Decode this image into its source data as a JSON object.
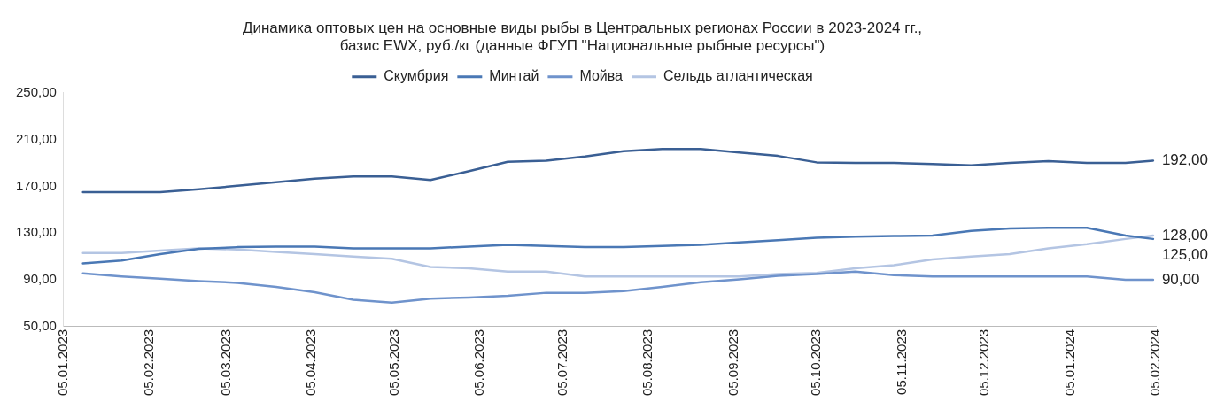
{
  "chart_data": {
    "type": "line",
    "title": "Динамика оптовых цен на основные виды рыбы в Центральных регионах России в 2023-2024 гг.,\nбазис EWX, руб./кг (данные ФГУП \"Национальные рыбные ресурсы\")",
    "x": [
      "2023-01-12",
      "2023-01-26",
      "2023-02-09",
      "2023-02-23",
      "2023-03-09",
      "2023-03-23",
      "2023-04-06",
      "2023-04-20",
      "2023-05-04",
      "2023-05-18",
      "2023-06-01",
      "2023-06-15",
      "2023-06-29",
      "2023-07-13",
      "2023-07-27",
      "2023-08-10",
      "2023-08-24",
      "2023-09-07",
      "2023-09-21",
      "2023-10-05",
      "2023-10-19",
      "2023-11-02",
      "2023-11-16",
      "2023-11-30",
      "2023-12-14",
      "2023-12-28",
      "2024-01-11",
      "2024-01-25",
      "2024-02-04"
    ],
    "series": [
      {
        "name": "Скумбрия",
        "color": "#3a5f94",
        "values": [
          165,
          165,
          165,
          167.5,
          170.5,
          173.5,
          176.5,
          178.5,
          178.5,
          175.5,
          183,
          191,
          192,
          195.5,
          200,
          202,
          202,
          199,
          196,
          190.5,
          190,
          190,
          189,
          188,
          190,
          191.5,
          190,
          190,
          192
        ],
        "value_labels": [
          null,
          null,
          null,
          null,
          null,
          null,
          null,
          null,
          null,
          null,
          null,
          null,
          null,
          null,
          null,
          null,
          null,
          null,
          null,
          null,
          null,
          null,
          null,
          null,
          null,
          null,
          null,
          null,
          "192,00"
        ]
      },
      {
        "name": "Минтай",
        "color": "#4a78b5",
        "values": [
          104,
          106.5,
          112,
          116.5,
          118,
          118.5,
          118.5,
          117,
          117,
          117,
          118.5,
          120,
          119,
          118,
          118,
          119,
          120,
          122,
          124,
          126,
          127,
          127.5,
          128,
          132,
          134,
          134.5,
          134.5,
          128,
          125
        ],
        "value_labels": [
          null,
          null,
          null,
          null,
          null,
          null,
          null,
          null,
          null,
          null,
          null,
          null,
          null,
          null,
          null,
          null,
          null,
          null,
          null,
          null,
          null,
          null,
          null,
          null,
          null,
          null,
          null,
          null,
          "125,00"
        ]
      },
      {
        "name": "Мойва",
        "color": "#6f93cc",
        "values": [
          95.5,
          93,
          91,
          89,
          87.5,
          84,
          79.5,
          73,
          70.5,
          74,
          75,
          76.5,
          79,
          79,
          80.5,
          84,
          88,
          90.5,
          93.5,
          95,
          97,
          94,
          93,
          93,
          93,
          93,
          93,
          90,
          90
        ],
        "value_labels": [
          null,
          null,
          null,
          null,
          null,
          null,
          null,
          null,
          null,
          null,
          null,
          null,
          null,
          null,
          null,
          null,
          null,
          null,
          null,
          null,
          null,
          null,
          null,
          null,
          null,
          null,
          null,
          null,
          "90,00"
        ]
      },
      {
        "name": "Сельдь атлантическая",
        "color": "#b4c5e3",
        "values": [
          113,
          113,
          115,
          117,
          116,
          114,
          112,
          110,
          108,
          101,
          100,
          97,
          97,
          93,
          93,
          93,
          93,
          93,
          95,
          96,
          100,
          102.5,
          107.5,
          110,
          112,
          117,
          120.5,
          125,
          128
        ],
        "value_labels": [
          null,
          null,
          null,
          null,
          null,
          null,
          null,
          null,
          null,
          null,
          null,
          null,
          null,
          null,
          null,
          null,
          null,
          null,
          null,
          null,
          null,
          null,
          null,
          null,
          null,
          null,
          null,
          null,
          "128,00"
        ]
      }
    ],
    "xlim": [
      "2023-01-05",
      "2024-02-05"
    ],
    "xticks": [
      {
        "value": "2023-01-05",
        "label": "05.01.2023"
      },
      {
        "value": "2023-02-05",
        "label": "05.02.2023"
      },
      {
        "value": "2023-03-05",
        "label": "05.03.2023"
      },
      {
        "value": "2023-04-05",
        "label": "05.04.2023"
      },
      {
        "value": "2023-05-05",
        "label": "05.05.2023"
      },
      {
        "value": "2023-06-05",
        "label": "05.06.2023"
      },
      {
        "value": "2023-07-05",
        "label": "05.07.2023"
      },
      {
        "value": "2023-08-05",
        "label": "05.08.2023"
      },
      {
        "value": "2023-09-05",
        "label": "05.09.2023"
      },
      {
        "value": "2023-10-05",
        "label": "05.10.2023"
      },
      {
        "value": "2023-11-05",
        "label": "05.11.2023"
      },
      {
        "value": "2023-12-05",
        "label": "05.12.2023"
      },
      {
        "value": "2024-01-05",
        "label": "05.01.2024"
      },
      {
        "value": "2024-02-05",
        "label": "05.02.2024"
      }
    ],
    "ylim": [
      50,
      250
    ],
    "yticks": [
      {
        "value": 50,
        "label": "50,00"
      },
      {
        "value": 90,
        "label": "90,00"
      },
      {
        "value": 130,
        "label": "130,00"
      },
      {
        "value": 170,
        "label": "170,00"
      },
      {
        "value": 210,
        "label": "210,00"
      },
      {
        "value": 250,
        "label": "250,00"
      }
    ],
    "grid": false,
    "legend": "top",
    "marker": "none",
    "line_style": "solid"
  }
}
